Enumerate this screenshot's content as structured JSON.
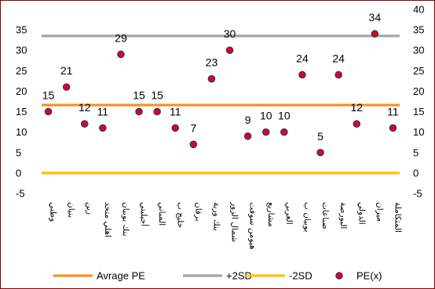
{
  "chart_data": {
    "type": "scatter",
    "categories": [
      "وطني",
      "بنيان",
      "زين",
      "اهلي متحد",
      "بنك بوبيان",
      "أجيليتي",
      "المباني",
      "خليج ب",
      "برقان",
      "بنك وربة",
      "شمال الزور",
      "هيومن سوفت",
      "مشاريع",
      "الغربي",
      "بوبيان ب",
      "صناعات",
      "البورصة",
      "الدولي",
      "ميزان",
      "المتكاملة"
    ],
    "series": [
      {
        "name": "PE(x)",
        "values": [
          15,
          21,
          12,
          11,
          29,
          15,
          15,
          11,
          7,
          23,
          30,
          9,
          10,
          10,
          24,
          5,
          24,
          12,
          34,
          11
        ],
        "color": "#e8000b",
        "edge_color": "#1f3a93"
      },
      {
        "name": "Avrage PE",
        "value": 16.6,
        "color": "#f7931e"
      },
      {
        "name": "+2SD",
        "value": 33.5,
        "color": "#a5a5a5"
      },
      {
        "name": "-2SD",
        "value": 0,
        "color": "#ffc000"
      }
    ],
    "data_labels": [
      "15",
      "21",
      "12",
      "11",
      "29",
      "15",
      "15",
      "11",
      "7",
      "23",
      "30",
      "9",
      "10",
      "10",
      "24",
      "5",
      "24",
      "12",
      "34",
      "11"
    ],
    "y_ticks": [
      -5,
      0,
      5,
      10,
      15,
      20,
      25,
      30,
      35
    ],
    "y_ticks_right": [
      -5,
      0,
      5,
      10,
      15,
      20,
      25,
      30,
      35,
      40
    ],
    "ylim": [
      -5,
      35
    ],
    "ylim_right": [
      -5,
      40
    ],
    "grid": false,
    "legend_position": "bottom",
    "legend": [
      {
        "label": "Avrage PE",
        "kind": "line",
        "color": "#f7931e"
      },
      {
        "label": "+2SD",
        "kind": "line",
        "color": "#a5a5a5"
      },
      {
        "label": "-2SD",
        "kind": "line",
        "color": "#ffc000"
      },
      {
        "label": "PE(x)",
        "kind": "marker",
        "color": "#e8000b"
      }
    ]
  }
}
